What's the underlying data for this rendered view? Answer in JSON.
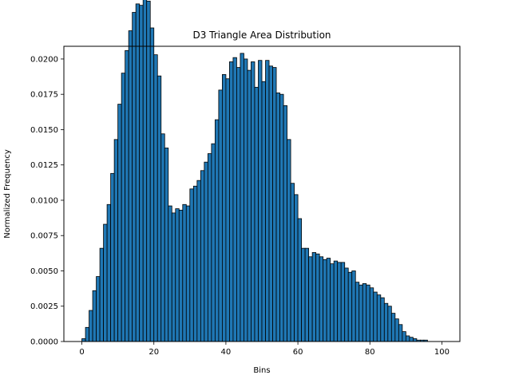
{
  "chart_data": {
    "type": "bar",
    "title": "D3 Triangle Area Distribution",
    "xlabel": "Bins",
    "ylabel": "Normalized Frequency",
    "xlim": [
      -5,
      105
    ],
    "ylim": [
      0,
      0.0209
    ],
    "x_ticks": [
      "0",
      "20",
      "40",
      "60",
      "80",
      "100"
    ],
    "y_ticks": [
      "0.0000",
      "0.0025",
      "0.0050",
      "0.0075",
      "0.0100",
      "0.0125",
      "0.0150",
      "0.0175",
      "0.0200"
    ],
    "bar_color": "#1f77b4",
    "edge_color": "#000000",
    "grid": false,
    "bins": [
      0,
      1,
      2,
      3,
      4,
      5,
      6,
      7,
      8,
      9,
      10,
      11,
      12,
      13,
      14,
      15,
      16,
      17,
      18,
      19,
      20,
      21,
      22,
      23,
      24,
      25,
      26,
      27,
      28,
      29,
      30,
      31,
      32,
      33,
      34,
      35,
      36,
      37,
      38,
      39,
      40,
      41,
      42,
      43,
      44,
      45,
      46,
      47,
      48,
      49,
      50,
      51,
      52,
      53,
      54,
      55,
      56,
      57,
      58,
      59,
      60,
      61,
      62,
      63,
      64,
      65,
      66,
      67,
      68,
      69,
      70,
      71,
      72,
      73,
      74,
      75,
      76,
      77,
      78,
      79,
      80,
      81,
      82,
      83,
      84,
      85,
      86,
      87,
      88,
      89,
      90,
      91,
      92,
      93,
      94,
      95,
      96,
      97,
      98,
      99
    ],
    "values": [
      0.0002,
      0.001,
      0.0022,
      0.0036,
      0.0046,
      0.0066,
      0.0083,
      0.0097,
      0.0119,
      0.0143,
      0.0168,
      0.019,
      0.0206,
      0.022,
      0.0233,
      0.0239,
      0.0238,
      0.0243,
      0.0241,
      0.0222,
      0.0203,
      0.0188,
      0.0147,
      0.0137,
      0.0096,
      0.0091,
      0.0094,
      0.0093,
      0.0097,
      0.0096,
      0.0108,
      0.011,
      0.0114,
      0.0121,
      0.0127,
      0.0133,
      0.014,
      0.0157,
      0.0178,
      0.0189,
      0.0186,
      0.0198,
      0.0201,
      0.0194,
      0.0204,
      0.02,
      0.0192,
      0.0198,
      0.018,
      0.0199,
      0.0184,
      0.0199,
      0.0195,
      0.0194,
      0.0176,
      0.0175,
      0.0167,
      0.0143,
      0.0112,
      0.0104,
      0.0087,
      0.0066,
      0.0066,
      0.006,
      0.0063,
      0.0062,
      0.006,
      0.0058,
      0.0059,
      0.0055,
      0.0057,
      0.0056,
      0.0056,
      0.0052,
      0.0049,
      0.005,
      0.0042,
      0.004,
      0.0041,
      0.004,
      0.0038,
      0.0035,
      0.0033,
      0.0031,
      0.0027,
      0.0025,
      0.002,
      0.0016,
      0.0012,
      0.0007,
      0.0004,
      0.0003,
      0.0002,
      0.0001,
      0.0001,
      0.0001,
      0.0,
      0.0,
      0.0,
      0.0
    ]
  }
}
